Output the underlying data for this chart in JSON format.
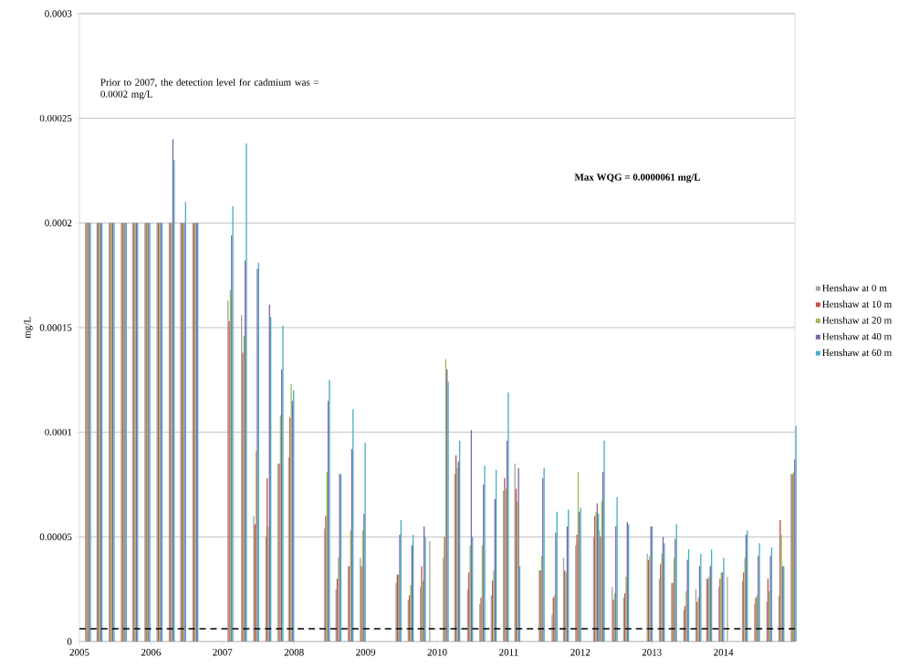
{
  "chart_data": {
    "type": "bar",
    "ylabel": "mg/L",
    "x": [
      2005.12,
      2005.28,
      2005.45,
      2005.62,
      2005.78,
      2005.95,
      2006.12,
      2006.29,
      2006.45,
      2006.62,
      2007.11,
      2007.3,
      2007.47,
      2007.64,
      2007.81,
      2007.96,
      2008.46,
      2008.62,
      2008.79,
      2008.96,
      2009.46,
      2009.63,
      2009.8,
      2009.93,
      2010.12,
      2010.28,
      2010.46,
      2010.63,
      2010.79,
      2010.96,
      2011.12,
      2011.46,
      2011.64,
      2011.8,
      2011.97,
      2012.22,
      2012.3,
      2012.48,
      2012.64,
      2012.97,
      2013.14,
      2013.31,
      2013.48,
      2013.65,
      2013.8,
      2013.97,
      2014.09,
      2014.3,
      2014.47,
      2014.64,
      2014.81,
      2014.98
    ],
    "series": [
      {
        "name": "Henshaw at 0 m",
        "color": "#a5a5a5",
        "values": [
          0.0002,
          0.0002,
          0.0002,
          0.0002,
          0.0002,
          0.0002,
          0.0002,
          0.0002,
          0.0002,
          0.0002,
          0.000163,
          0.000156,
          6e-05,
          5e-05,
          8.5e-05,
          8.8e-05,
          5.4e-05,
          2.5e-05,
          3.6e-05,
          4e-05,
          2.8e-05,
          2e-05,
          2.6e-05,
          4.8e-05,
          4e-05,
          8e-05,
          2.5e-05,
          1.8e-05,
          2.2e-05,
          7.2e-05,
          8.5e-05,
          3.4e-05,
          1.3e-05,
          4e-05,
          4.6e-05,
          5e-05,
          5.3e-05,
          2.6e-05,
          2.1e-05,
          4.2e-05,
          3e-05,
          2.8e-05,
          1.5e-05,
          2.5e-05,
          3e-05,
          2.6e-05,
          3.1e-05,
          2.9e-05,
          1.8e-05,
          1.9e-05,
          2.2e-05,
          8e-05
        ]
      },
      {
        "name": "Henshaw at 10 m",
        "color": "#c0504d",
        "values": [
          0.0002,
          0.0002,
          0.0002,
          0.0002,
          0.0002,
          0.0002,
          0.0002,
          0.0002,
          0.0002,
          0.0002,
          0.000153,
          0.000138,
          5.6e-05,
          7.8e-05,
          8.5e-05,
          0.000107,
          6e-05,
          3e-05,
          3.6e-05,
          3.6e-05,
          3.2e-05,
          2.2e-05,
          3.6e-05,
          null,
          5e-05,
          8.9e-05,
          3.3e-05,
          2.1e-05,
          2.9e-05,
          7.8e-05,
          7.3e-05,
          3.4e-05,
          2.1e-05,
          3.4e-05,
          5.1e-05,
          6e-05,
          5e-05,
          2e-05,
          2.3e-05,
          3.9e-05,
          3.7e-05,
          2.8e-05,
          1.7e-05,
          1.9e-05,
          3e-05,
          3e-05,
          null,
          3.3e-05,
          2.1e-05,
          3e-05,
          5.8e-05,
          8e-05
        ]
      },
      {
        "name": "Henshaw at 20 m",
        "color": "#9bbb59",
        "values": [
          0.0002,
          0.0002,
          0.0002,
          0.0002,
          0.0002,
          0.0002,
          0.0002,
          0.0002,
          0.0002,
          0.0002,
          0.000168,
          0.000146,
          9.1e-05,
          5.5e-05,
          0.000108,
          0.000123,
          8.1e-05,
          4e-05,
          5.3e-05,
          5.3e-05,
          3.2e-05,
          2.7e-05,
          2.9e-05,
          null,
          0.000135,
          8.3e-05,
          4.6e-05,
          4.6e-05,
          3.4e-05,
          7.3e-05,
          6.7e-05,
          4.1e-05,
          2.2e-05,
          3.3e-05,
          8.1e-05,
          6.2e-05,
          6.7e-05,
          2.3e-05,
          3.1e-05,
          4.1e-05,
          4.2e-05,
          4e-05,
          2.4e-05,
          2.1e-05,
          3.1e-05,
          3.3e-05,
          null,
          4e-05,
          2.2e-05,
          2.4e-05,
          5.1e-05,
          8.1e-05
        ]
      },
      {
        "name": "Henshaw at 40 m",
        "color": "#8064a2",
        "values": [
          0.0002,
          0.0002,
          0.0002,
          0.0002,
          0.0002,
          0.0002,
          0.0002,
          0.00024,
          0.0002,
          0.0002,
          0.000194,
          0.000182,
          0.000178,
          0.000161,
          0.00013,
          0.000115,
          0.000115,
          8e-05,
          9.2e-05,
          6.1e-05,
          5.1e-05,
          4.6e-05,
          5.5e-05,
          null,
          0.00013,
          8.6e-05,
          0.000101,
          7.5e-05,
          6.8e-05,
          9.6e-05,
          8.3e-05,
          7.8e-05,
          5.2e-05,
          5.5e-05,
          6.2e-05,
          6.6e-05,
          8.1e-05,
          5.5e-05,
          5.7e-05,
          5.5e-05,
          5e-05,
          4.9e-05,
          3.9e-05,
          3.6e-05,
          3.6e-05,
          3.3e-05,
          null,
          5.1e-05,
          4.1e-05,
          4.1e-05,
          3.6e-05,
          8.7e-05
        ]
      },
      {
        "name": "Henshaw at 60 m",
        "color": "#4bacc6",
        "values": [
          0.0002,
          0.0002,
          0.0002,
          0.0002,
          0.0002,
          0.0002,
          0.0002,
          0.00023,
          0.00021,
          0.0002,
          0.000208,
          0.000238,
          0.000181,
          0.000155,
          0.000151,
          0.00012,
          0.000125,
          8e-05,
          0.000111,
          9.5e-05,
          5.8e-05,
          5.1e-05,
          5e-05,
          null,
          0.000124,
          9.6e-05,
          5e-05,
          8.4e-05,
          8.2e-05,
          0.000119,
          3.6e-05,
          8.3e-05,
          6.2e-05,
          6.3e-05,
          6.4e-05,
          6.1e-05,
          9.6e-05,
          6.9e-05,
          5.6e-05,
          5.5e-05,
          4.7e-05,
          5.6e-05,
          4.4e-05,
          4.2e-05,
          4.4e-05,
          4e-05,
          null,
          5.3e-05,
          4.7e-05,
          4.5e-05,
          3.6e-05,
          0.000103
        ]
      }
    ],
    "xlim": [
      2005,
      2015
    ],
    "xticks": [
      2005,
      2006,
      2007,
      2008,
      2009,
      2010,
      2011,
      2012,
      2013,
      2014
    ],
    "ylim": [
      0,
      0.0003
    ],
    "yticks": [
      {
        "value": 0,
        "label": "0"
      },
      {
        "value": 5e-05,
        "label": "0.00005"
      },
      {
        "value": 0.0001,
        "label": "0.0001"
      },
      {
        "value": 0.00015,
        "label": "0.00015"
      },
      {
        "value": 0.0002,
        "label": "0.0002"
      },
      {
        "value": 0.00025,
        "label": "0.00025"
      },
      {
        "value": 0.0003,
        "label": "0.0003"
      }
    ],
    "grid": "y",
    "legend": "right",
    "ref_lines": [
      {
        "axis": "y",
        "value": 6.1e-06,
        "color": "#000000",
        "line_style": "dashed"
      }
    ],
    "annotations": [
      "Prior to 2007, the detection level for cadmium was = 0.0002 mg/L",
      "Max WQG = 0.0000061 mg/L"
    ]
  }
}
